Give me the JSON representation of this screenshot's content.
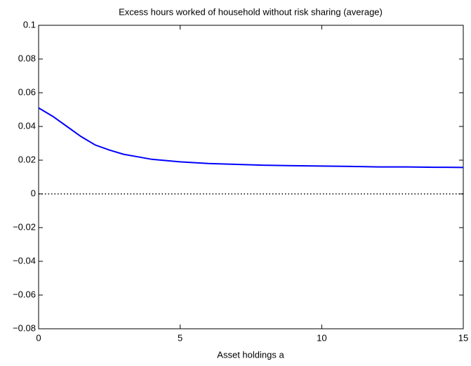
{
  "chart_data": {
    "type": "line",
    "title": "Excess hours worked of household without risk sharing (average)",
    "xlabel": "Asset holdings a",
    "x": [
      0,
      0.5,
      1,
      1.5,
      2,
      2.5,
      3,
      3.5,
      4,
      5,
      6,
      7,
      8,
      9,
      10,
      11,
      12,
      13,
      14,
      15
    ],
    "series": [
      {
        "color": "#0000ff",
        "values": [
          0.051,
          0.046,
          0.04,
          0.034,
          0.029,
          0.026,
          0.0235,
          0.022,
          0.0205,
          0.019,
          0.018,
          0.0175,
          0.017,
          0.0167,
          0.0165,
          0.0163,
          0.016,
          0.016,
          0.0158,
          0.0157
        ]
      }
    ],
    "hline": 0,
    "xlim": [
      0,
      15
    ],
    "xticks": [
      0,
      5,
      10,
      15
    ],
    "ylim": [
      -0.08,
      0.1
    ],
    "yticks": [
      {
        "value": -0.08,
        "label": "−0.08"
      },
      {
        "value": -0.06,
        "label": "−0.06"
      },
      {
        "value": -0.04,
        "label": "−0.04"
      },
      {
        "value": -0.02,
        "label": "−0.02"
      },
      0,
      0.02,
      0.04,
      0.06,
      0.08,
      0.1
    ],
    "grid": false
  }
}
